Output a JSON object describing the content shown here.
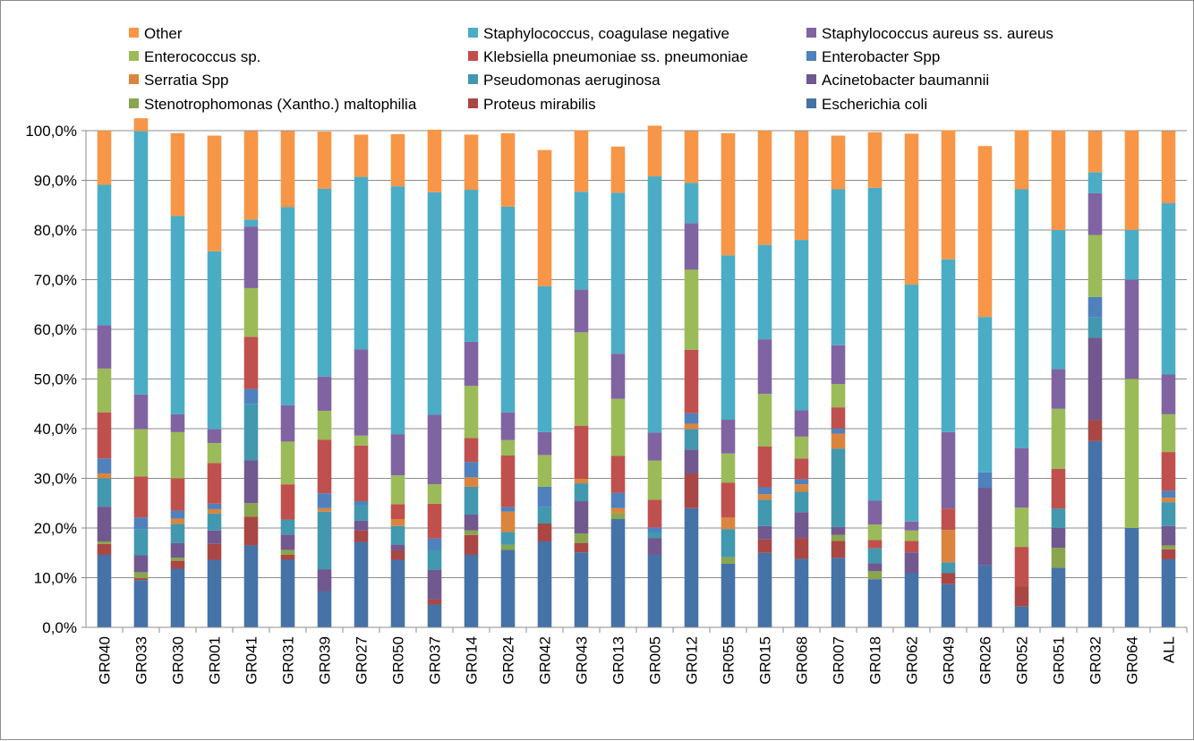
{
  "chart_data": {
    "type": "bar",
    "stacked": true,
    "percent": true,
    "categories": [
      "GR040",
      "GR033",
      "GR030",
      "GR001",
      "GR041",
      "GR031",
      "GR039",
      "GR027",
      "GR050",
      "GR037",
      "GR014",
      "GR024",
      "GR042",
      "GR043",
      "GR013",
      "GR005",
      "GR012",
      "GR055",
      "GR015",
      "GR068",
      "GR007",
      "GR018",
      "GR062",
      "GR049",
      "GR026",
      "GR052",
      "GR051",
      "GR032",
      "GR064",
      "ALL"
    ],
    "ylim": [
      0,
      100
    ],
    "y_ticks": [
      "0,0%",
      "10,0%",
      "20,0%",
      "30,0%",
      "40,0%",
      "50,0%",
      "60,0%",
      "70,0%",
      "80,0%",
      "90,0%",
      "100,0%"
    ],
    "grid": true,
    "legend_position": "top",
    "legend": [
      "Other",
      "Staphylococcus, coagulase negative",
      "Staphylococcus aureus ss. aureus",
      "Enterococcus sp.",
      "Klebsiella pneumoniae ss. pneumoniae",
      "Enterobacter Spp",
      "Serratia Spp",
      "Pseudomonas aeruginosa",
      "Acinetobacter baumannii",
      "Stenotrophomonas (Xantho.) maltophilia",
      "Proteus mirabilis",
      "Escherichia coli"
    ],
    "series": [
      {
        "name": "Escherichia coli",
        "color": "#4572a7",
        "values": [
          14.6,
          9.5,
          11.8,
          13.6,
          16.5,
          13.6,
          7.3,
          17.2,
          13.6,
          4.6,
          14.6,
          15.6,
          17.3,
          15.1,
          21.8,
          14.6,
          24.0,
          12.8,
          15.0,
          13.8,
          14.0,
          9.7,
          10.9,
          8.7,
          12.5,
          4.2,
          12.0,
          37.5,
          20.0,
          13.7
        ]
      },
      {
        "name": "Proteus mirabilis",
        "color": "#aa4643",
        "values": [
          2.2,
          0.4,
          1.6,
          3.2,
          5.8,
          1.0,
          0.0,
          2.3,
          1.9,
          1.0,
          4.0,
          0.0,
          3.6,
          1.9,
          0.0,
          0.0,
          6.9,
          0.0,
          2.7,
          4.2,
          3.4,
          0.0,
          0.0,
          2.2,
          0.0,
          4.0,
          0.0,
          4.2,
          0.0,
          2.0
        ]
      },
      {
        "name": "Stenotrophomonas (Xantho.) maltophilia",
        "color": "#89a54e",
        "values": [
          0.5,
          1.2,
          0.6,
          0.0,
          2.7,
          1.0,
          0.0,
          0.0,
          0.0,
          0.0,
          0.9,
          1.0,
          0.0,
          1.9,
          1.2,
          0.0,
          0.0,
          1.3,
          0.0,
          0.0,
          1.2,
          1.6,
          0.0,
          0.0,
          0.0,
          0.0,
          4.0,
          0.0,
          0.0,
          0.8
        ]
      },
      {
        "name": "Acinetobacter baumannii",
        "color": "#71588f",
        "values": [
          7.0,
          3.4,
          3.0,
          2.7,
          8.6,
          3.1,
          4.4,
          2.0,
          1.2,
          6.0,
          3.2,
          0.0,
          0.0,
          6.5,
          0.0,
          3.4,
          4.9,
          0.0,
          2.7,
          5.2,
          1.6,
          1.6,
          4.2,
          0.0,
          15.6,
          0.0,
          4.0,
          16.6,
          0.0,
          3.9
        ]
      },
      {
        "name": "Pseudomonas aeruginosa",
        "color": "#4198af",
        "values": [
          5.7,
          5.2,
          3.8,
          3.4,
          11.4,
          3.0,
          11.6,
          3.1,
          3.7,
          3.9,
          5.6,
          2.6,
          3.3,
          3.6,
          0.0,
          1.1,
          4.1,
          5.7,
          5.3,
          4.1,
          15.8,
          3.0,
          0.0,
          2.2,
          0.0,
          0.0,
          3.9,
          4.1,
          0.0,
          4.8
        ]
      },
      {
        "name": "Serratia Spp",
        "color": "#db843d",
        "values": [
          1.0,
          0.0,
          1.1,
          0.9,
          0.0,
          0.0,
          0.7,
          0.0,
          1.4,
          0.0,
          1.9,
          4.1,
          0.0,
          0.9,
          1.0,
          0.0,
          1.1,
          2.3,
          1.1,
          1.5,
          3.0,
          0.0,
          0.0,
          6.5,
          0.0,
          0.0,
          0.0,
          0.0,
          0.0,
          0.9
        ]
      },
      {
        "name": "Enterobacter Spp",
        "color": "#4f81bd",
        "values": [
          3.0,
          2.4,
          1.6,
          1.1,
          3.0,
          0.0,
          3.0,
          0.8,
          0.0,
          2.4,
          3.1,
          0.9,
          4.1,
          0.0,
          3.1,
          1.0,
          2.1,
          0.0,
          1.4,
          1.0,
          1.0,
          0.0,
          0.0,
          0.0,
          3.1,
          0.0,
          0.0,
          4.1,
          0.0,
          1.4
        ]
      },
      {
        "name": "Klebsiella pneumoniae ss. pneumoniae",
        "color": "#c0504d",
        "values": [
          9.3,
          8.3,
          6.5,
          8.2,
          10.5,
          7.1,
          10.8,
          11.2,
          3.0,
          7.0,
          4.8,
          10.4,
          0.0,
          10.7,
          7.4,
          5.6,
          12.8,
          7.0,
          8.2,
          4.2,
          4.3,
          1.7,
          2.3,
          4.3,
          0.0,
          8.0,
          8.0,
          0.0,
          0.0,
          7.8
        ]
      },
      {
        "name": "Enterococcus sp.",
        "color": "#9bbb59",
        "values": [
          8.8,
          9.5,
          9.3,
          4.0,
          9.8,
          8.6,
          5.8,
          2.0,
          5.8,
          3.9,
          10.5,
          3.1,
          6.4,
          18.8,
          11.5,
          7.9,
          16.1,
          5.9,
          10.6,
          4.4,
          4.7,
          3.1,
          2.1,
          0.0,
          0.0,
          7.9,
          12.1,
          12.5,
          30.0,
          7.6
        ]
      },
      {
        "name": "Staphylococcus aureus ss. aureus",
        "color": "#8064a2",
        "values": [
          8.7,
          7.0,
          3.6,
          2.8,
          12.4,
          7.3,
          6.9,
          17.4,
          8.3,
          14.0,
          8.9,
          5.6,
          4.6,
          8.6,
          9.1,
          5.6,
          9.4,
          6.8,
          11.0,
          5.3,
          7.8,
          4.8,
          1.8,
          15.4,
          0.0,
          12.0,
          8.0,
          8.4,
          20.0,
          8.0
        ]
      },
      {
        "name": "Staphylococcus, coagulase negative",
        "color": "#4bacc6",
        "values": [
          28.3,
          53.0,
          39.9,
          35.8,
          1.4,
          39.9,
          37.8,
          34.7,
          49.9,
          44.8,
          30.6,
          41.4,
          29.4,
          19.7,
          32.4,
          51.6,
          8.1,
          33.1,
          19.0,
          34.3,
          31.4,
          63.0,
          47.7,
          34.8,
          31.3,
          52.1,
          28.0,
          4.2,
          10.0,
          34.5
        ]
      },
      {
        "name": "Other",
        "color": "#f79646",
        "values": [
          10.9,
          2.6,
          16.7,
          23.3,
          17.8,
          15.3,
          11.5,
          8.5,
          10.5,
          12.6,
          11.1,
          14.8,
          27.4,
          12.3,
          9.3,
          10.2,
          10.4,
          24.6,
          23.0,
          21.9,
          10.8,
          11.2,
          30.4,
          26.0,
          34.4,
          11.9,
          20.0,
          8.3,
          20.0,
          14.5
        ]
      }
    ],
    "legend_layout": [
      [
        0,
        1,
        2
      ],
      [
        3,
        4,
        5
      ],
      [
        6,
        7,
        8
      ],
      [
        9,
        10,
        11
      ]
    ]
  }
}
